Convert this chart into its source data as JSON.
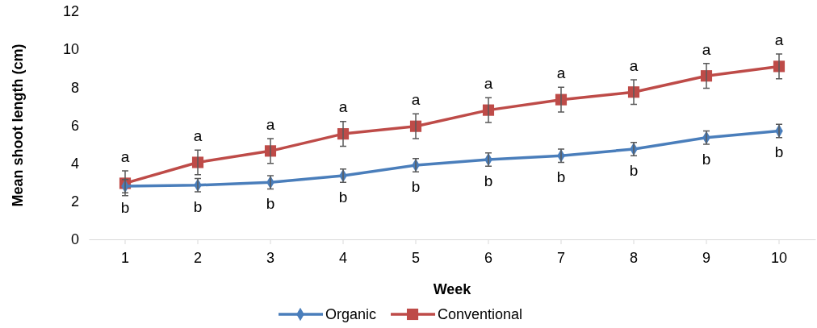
{
  "chart_data": {
    "type": "line",
    "xlabel": "Week",
    "ylabel": "Mean shoot length (cm)",
    "categories": [
      "1",
      "2",
      "3",
      "4",
      "5",
      "6",
      "7",
      "8",
      "9",
      "10"
    ],
    "ylim": [
      0,
      12
    ],
    "yticks": [
      0,
      2,
      4,
      6,
      8,
      10,
      12
    ],
    "grid": false,
    "legend": "bottom",
    "line_style": "solid",
    "series": [
      {
        "name": "Organic",
        "color": "#4a7ebb",
        "marker": "diamond",
        "values": [
          2.8,
          2.85,
          3.0,
          3.35,
          3.9,
          4.2,
          4.4,
          4.75,
          5.35,
          5.7
        ],
        "errors": [
          0.35,
          0.35,
          0.35,
          0.35,
          0.35,
          0.35,
          0.35,
          0.35,
          0.35,
          0.35
        ]
      },
      {
        "name": "Conventional",
        "color": "#be4b48",
        "marker": "square",
        "values": [
          2.95,
          4.05,
          4.65,
          5.55,
          5.95,
          6.8,
          7.35,
          7.75,
          8.6,
          9.1
        ],
        "errors": [
          0.65,
          0.65,
          0.65,
          0.65,
          0.65,
          0.65,
          0.65,
          0.65,
          0.65,
          0.65
        ]
      }
    ],
    "annotations": [
      {
        "text": "a",
        "x": "1",
        "y": 2.95
      },
      {
        "text": "a",
        "x": "2",
        "y": 4.05
      },
      {
        "text": "a",
        "x": "3",
        "y": 4.65
      },
      {
        "text": "a",
        "x": "4",
        "y": 5.55
      },
      {
        "text": "a",
        "x": "5",
        "y": 5.95
      },
      {
        "text": "a",
        "x": "6",
        "y": 6.8
      },
      {
        "text": "a",
        "x": "7",
        "y": 7.35
      },
      {
        "text": "a",
        "x": "8",
        "y": 7.75
      },
      {
        "text": "a",
        "x": "9",
        "y": 8.6
      },
      {
        "text": "a",
        "x": "10",
        "y": 9.1
      },
      {
        "text": "b",
        "x": "1",
        "y": 2.8
      },
      {
        "text": "b",
        "x": "2",
        "y": 2.85
      },
      {
        "text": "b",
        "x": "3",
        "y": 3.0
      },
      {
        "text": "b",
        "x": "4",
        "y": 3.35
      },
      {
        "text": "b",
        "x": "5",
        "y": 3.9
      },
      {
        "text": "b",
        "x": "6",
        "y": 4.2
      },
      {
        "text": "b",
        "x": "7",
        "y": 4.4
      },
      {
        "text": "b",
        "x": "8",
        "y": 4.75
      },
      {
        "text": "b",
        "x": "9",
        "y": 5.35
      },
      {
        "text": "b",
        "x": "10",
        "y": 5.7
      }
    ]
  }
}
